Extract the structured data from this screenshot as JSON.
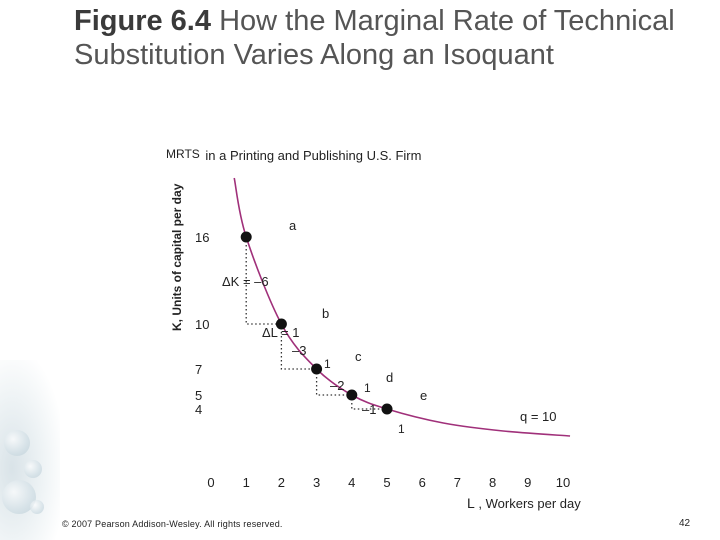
{
  "title": {
    "label": "Figure 6.4",
    "text": "How the Marginal Rate of Technical Substitution Varies Along an Isoquant"
  },
  "subtitle": "MRTS in a Printing and Publishing U.S. Firm",
  "subtitle_parts": {
    "mrts": "MRTS",
    "rest": "in a Printing and Publishing U.S. Firm"
  },
  "y_axis_label": "K, Units of capital per day",
  "x_axis_label": "L, Workers per day",
  "x_axis_label_parts": {
    "letter": "L",
    "rest": ", Workers per day"
  },
  "x_ticks": [
    "0",
    "1",
    "2",
    "3",
    "4",
    "5",
    "6",
    "7",
    "8",
    "9",
    "10"
  ],
  "y_ticks": [
    {
      "value": 16,
      "text": "16"
    },
    {
      "value": 10,
      "text": "10"
    },
    {
      "value": 7,
      "text": "7"
    },
    {
      "value": 5,
      "text": "5"
    },
    {
      "value": 4,
      "text": "4"
    }
  ],
  "isoquant_label": "q = 10",
  "points": [
    {
      "id": "a",
      "L": 1,
      "K": 16
    },
    {
      "id": "b",
      "L": 2,
      "K": 10
    },
    {
      "id": "c",
      "L": 3,
      "K": 7
    },
    {
      "id": "d",
      "L": 4,
      "K": 5
    },
    {
      "id": "e",
      "L": 5,
      "K": 4
    }
  ],
  "annotations": {
    "dK_ab": "ΔK = –6",
    "dL_ab": "ΔL = 1",
    "dK_bc": "–3",
    "dL_bc": "1",
    "dK_cd": "–2",
    "dL_cd": "1",
    "dK_de": "–1",
    "dL_de": "1"
  },
  "colors": {
    "curve": "#a0307a",
    "text": "#222222",
    "point": "#111111",
    "title": "#555555"
  },
  "footer": {
    "copyright": "© 2007 Pearson Addison-Wesley. All rights reserved.",
    "page": "42"
  }
}
